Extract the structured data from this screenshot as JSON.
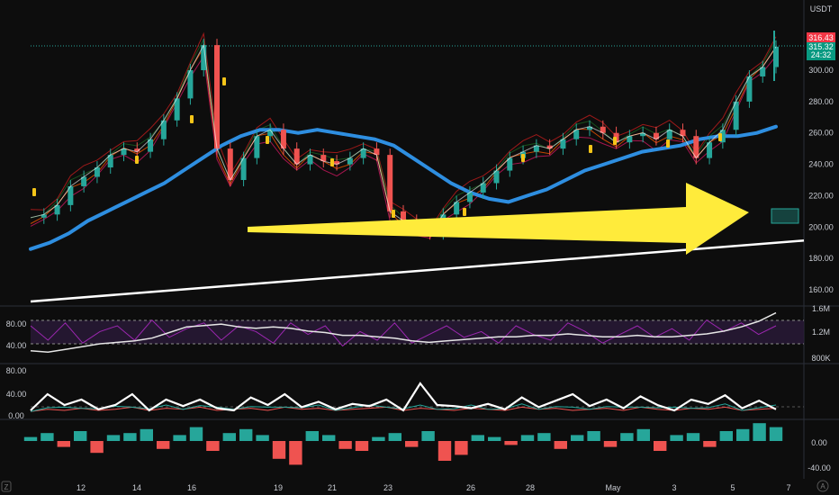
{
  "currency": "USDT",
  "price_tags": {
    "high": "316.43",
    "last": "315.32",
    "countdown": "24:32"
  },
  "colors": {
    "background": "#0d0d0d",
    "ema_long": "#2e8ee0",
    "trendline": "#ffffff",
    "arrow": "#ffeb3b",
    "up": "#26a69a",
    "down": "#ef5350",
    "rsi_line": "#e6e6e6",
    "rsi_osc": "#9c27b0",
    "rsi_band": "#2a1a3a",
    "red_tag": "#f23645",
    "green_tag": "#089981"
  },
  "chart_data": [
    {
      "type": "line",
      "name": "main-price-panel",
      "y_ticks": [
        160,
        180,
        200,
        220,
        240,
        260,
        280,
        300
      ],
      "ylim": [
        150,
        320
      ],
      "x_ticks": [
        "12",
        "14",
        "16",
        "19",
        "21",
        "23",
        "26",
        "28",
        "May",
        "3",
        "5",
        "7"
      ],
      "series": [
        {
          "values": [
            206,
            208,
            214,
            226,
            232,
            238,
            246,
            250,
            248,
            256,
            268,
            282,
            300,
            316,
            250,
            230,
            244,
            258,
            262,
            250,
            240,
            246,
            242,
            240,
            244,
            250,
            246,
            210,
            204,
            200,
            196,
            208,
            216,
            222,
            228,
            236,
            244,
            248,
            252,
            250,
            256,
            262,
            264,
            260,
            254,
            258,
            260,
            256,
            262,
            258,
            244,
            254,
            262,
            280,
            296,
            302,
            315
          ]
        },
        {
          "values": [
            186,
            190,
            196,
            204,
            210,
            216,
            222,
            228,
            236,
            244,
            252,
            258,
            262,
            262,
            260,
            262,
            260,
            258,
            256,
            252,
            244,
            236,
            228,
            222,
            218,
            216,
            220,
            224,
            230,
            236,
            240,
            244,
            248,
            250,
            252,
            256,
            258,
            258,
            260,
            264
          ]
        },
        {
          "values": [
            156,
            200
          ]
        }
      ],
      "annotations": [
        "arrow",
        "box"
      ]
    },
    {
      "type": "line",
      "name": "rsi-panel",
      "y_ticks_left": [
        40,
        80
      ],
      "y_ticks_right": [
        "800K",
        "1.2M",
        "1.6M"
      ],
      "series": [
        {
          "values": [
            38,
            36,
            40,
            44,
            48,
            50,
            52,
            56,
            64,
            72,
            74,
            76,
            72,
            70,
            72,
            70,
            66,
            64,
            60,
            60,
            58,
            56,
            52,
            50,
            52,
            54,
            56,
            58,
            58,
            60,
            60,
            62,
            60,
            58,
            58,
            60,
            58,
            58,
            60,
            62,
            66,
            72,
            80,
            92
          ]
        },
        {
          "values": [
            70,
            60,
            72,
            58,
            66,
            70,
            60,
            74,
            62,
            68,
            72,
            60,
            70,
            66,
            58,
            72,
            64,
            70,
            56,
            66,
            60,
            72,
            58,
            64,
            70,
            62,
            66,
            58,
            70,
            64,
            60,
            72,
            66,
            58,
            64,
            70,
            62,
            68,
            60,
            74,
            66,
            72,
            64,
            70
          ]
        }
      ]
    },
    {
      "type": "line",
      "name": "adx-panel",
      "y_ticks": [
        "0.00",
        "40.00",
        "80.00"
      ],
      "series": [
        {
          "values": [
            10,
            40,
            20,
            30,
            12,
            20,
            40,
            10,
            30,
            18,
            30,
            14,
            10,
            34,
            20,
            40,
            16,
            26,
            12,
            22,
            18,
            30,
            10,
            60,
            20,
            18,
            14,
            22,
            12,
            34,
            16,
            28,
            40,
            18,
            30,
            14,
            36,
            20,
            10,
            30,
            22,
            38,
            14,
            28,
            12
          ]
        },
        {
          "values": [
            8,
            12,
            10,
            14,
            10,
            12,
            16,
            10,
            14,
            12,
            16,
            10,
            12,
            14,
            10,
            16,
            12,
            14,
            10,
            12,
            14,
            16,
            10,
            14,
            12,
            10,
            14,
            12,
            10,
            16,
            12,
            14,
            10,
            12,
            14,
            10,
            16,
            12,
            10,
            14,
            12,
            16,
            10,
            12,
            14
          ]
        }
      ]
    },
    {
      "type": "bar",
      "name": "macd-panel",
      "y_ticks": [
        "0.00",
        "-40.00"
      ],
      "values": [
        4,
        8,
        -6,
        10,
        -12,
        6,
        8,
        12,
        -8,
        6,
        14,
        -10,
        8,
        12,
        6,
        -18,
        -24,
        10,
        6,
        -8,
        -10,
        4,
        8,
        -6,
        10,
        -20,
        -14,
        6,
        4,
        -4,
        6,
        8,
        -8,
        6,
        10,
        -6,
        8,
        12,
        -10,
        6,
        8,
        -6,
        10,
        12,
        18,
        14
      ]
    }
  ]
}
